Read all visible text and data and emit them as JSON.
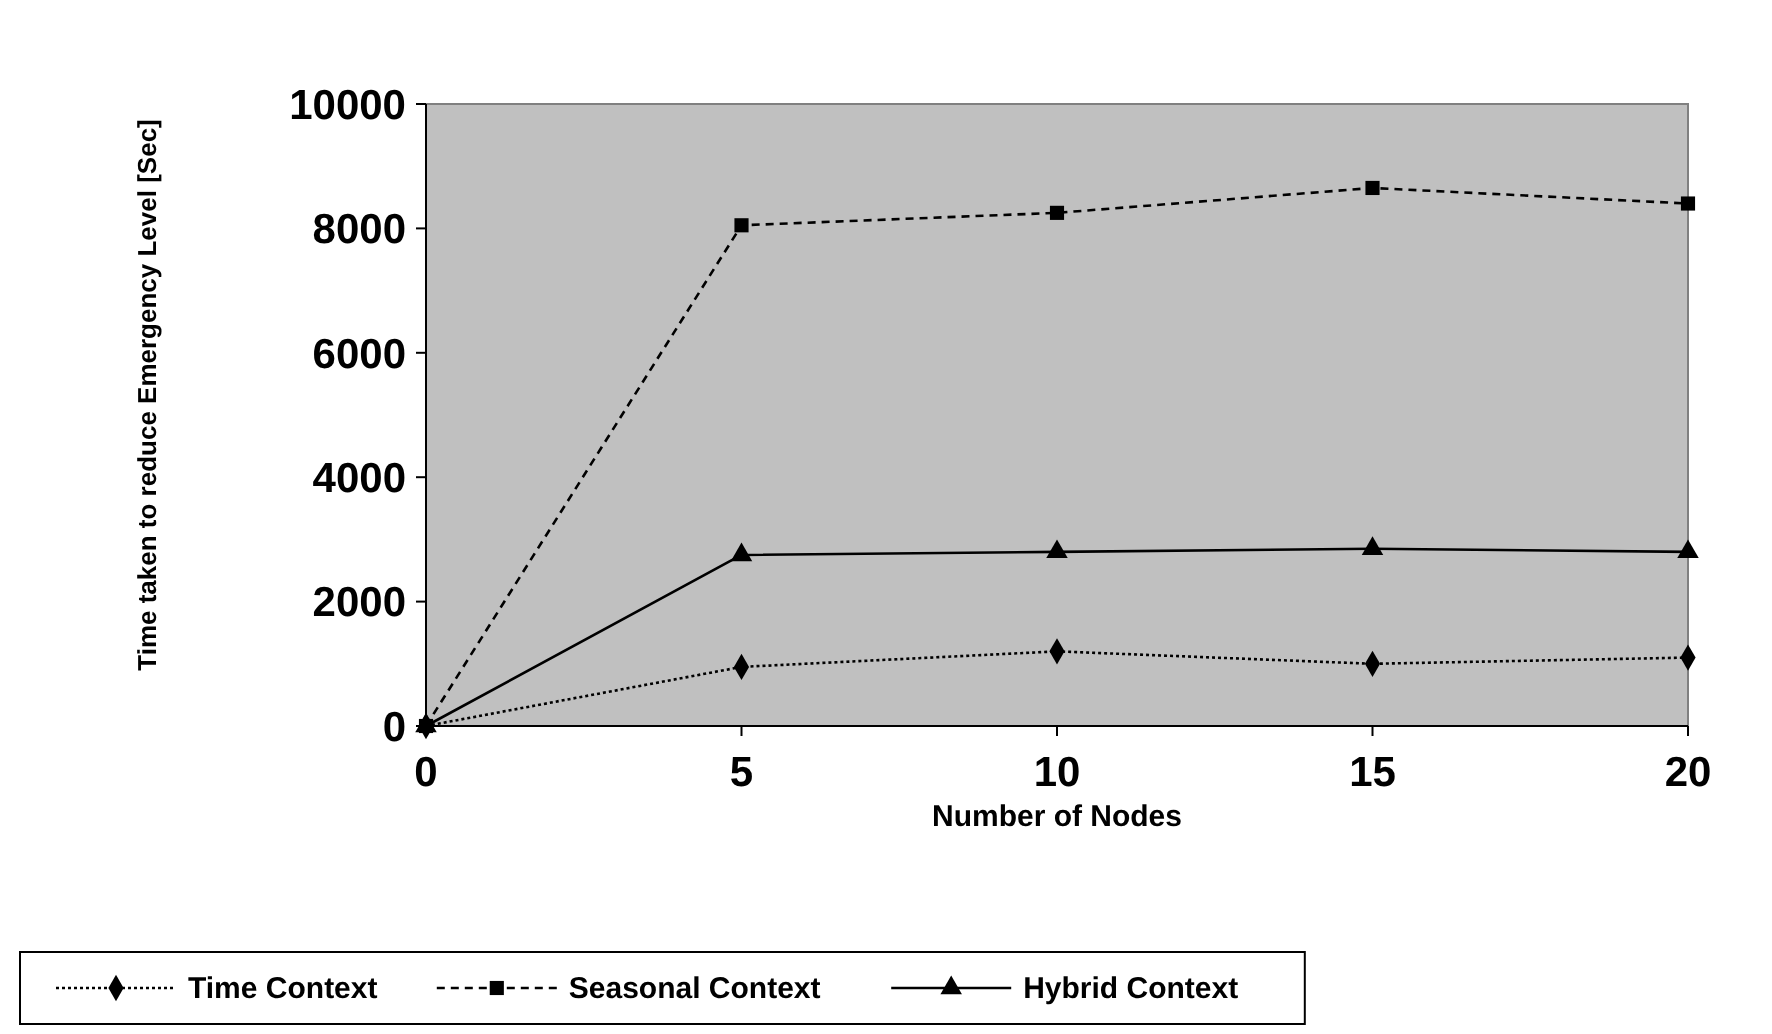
{
  "chart_data": {
    "type": "line",
    "xlabel": "Number of Nodes",
    "ylabel": "Time taken to reduce Emergency Level [Sec]",
    "x": [
      0,
      5,
      10,
      15,
      20
    ],
    "xlim": [
      0,
      20
    ],
    "xticks": [
      0,
      5,
      10,
      15,
      20
    ],
    "ylim": [
      0,
      10000
    ],
    "yticks": [
      0,
      2000,
      4000,
      6000,
      8000,
      10000
    ],
    "grid": false,
    "legend": "bottom",
    "series": [
      {
        "name": "Time Context",
        "color": "#000000",
        "marker": "diamond",
        "line_style": "dotted",
        "values": [
          0,
          950,
          1200,
          1000,
          1100
        ]
      },
      {
        "name": "Seasonal Context",
        "color": "#000000",
        "marker": "square",
        "line_style": "dashed",
        "values": [
          0,
          8050,
          8250,
          8650,
          8400
        ]
      },
      {
        "name": "Hybrid Context",
        "color": "#000000",
        "marker": "triangle",
        "line_style": "solid",
        "values": [
          0,
          2750,
          2800,
          2850,
          2800
        ]
      }
    ]
  }
}
